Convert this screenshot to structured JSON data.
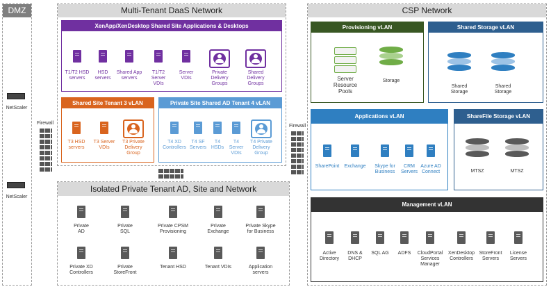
{
  "dmz": {
    "title": "DMZ",
    "netscaler_top": "NetScaler",
    "netscaler_bottom": "NetScaler",
    "firewall": "Firewall"
  },
  "daas": {
    "title": "Multi-Tenant DaaS Network",
    "shared_site": {
      "title": "XenApp/XenDesktop Shared Site Applications & Desktops",
      "items": [
        "T1/T2 HSD\nservers",
        "HSD\nservers",
        "Shared App\nservers",
        "T1/T2\nServer\nVDIs",
        "Server\nVDIs",
        "Private\nDelivery\nGroups",
        "Shared\nDelivery\nGroups"
      ]
    },
    "tenant3": {
      "title": "Shared Site Tenant 3 vLAN",
      "items": [
        "T3 HSD\nservers",
        "T3 Server\nVDIs",
        "T3 Private\nDelivery\nGroup"
      ]
    },
    "tenant4": {
      "title": "Private Site Shared AD Tenant 4 vLAN",
      "items": [
        "T4 XD\nControllers",
        "T4 SF\nServers",
        "T4\nHSDs",
        "T4\nServer\nVDIs",
        "T4 Private\nDelivery\nGroup"
      ]
    }
  },
  "isolated": {
    "title": "Isolated Private Tenant AD, Site and Network",
    "items": [
      "Private\nAD",
      "Private\nSQL",
      "Private CPSM\nProvisioning",
      "Private\nExchange",
      "Private Skype\nfor Business",
      "Private XD\nControllers",
      "Private\nStoreFront",
      "Tenant HSD",
      "Tenant VDIs",
      "Application\nservers"
    ]
  },
  "csp": {
    "title": "CSP Network",
    "firewall": "Firewall",
    "provisioning": {
      "title": "Provisioning vLAN",
      "server_pools": "Server\nResource\nPools",
      "storage": "Storage"
    },
    "shared_storage": {
      "title": "Shared Storage vLAN",
      "items": [
        "Shared\nStorage",
        "Shared\nStorage"
      ]
    },
    "applications": {
      "title": "Applications vLAN",
      "items": [
        "SharePoint",
        "Exchange",
        "Skype for\nBusiness",
        "CRM\nServers",
        "Azure AD\nConnect"
      ]
    },
    "sharefile": {
      "title": "ShareFile Storage vLAN",
      "items": [
        "MTSZ",
        "MTSZ"
      ]
    },
    "management": {
      "title": "Management vLAN",
      "items": [
        "Active\nDirectory",
        "DNS &\nDHCP",
        "SQL AG",
        "ADFS",
        "CloudPortal\nServices\nManager",
        "XenDesktop\nControllers",
        "StoreFront\nServers",
        "License\nServers"
      ]
    }
  },
  "colors": {
    "purple": "#7030a0",
    "orange": "#d9641e",
    "blue": "#5b9bd5",
    "green": "#385723",
    "navy": "#2e5f8f",
    "darkgray": "#333333",
    "server_gray": "#595959",
    "storage_green": "#70ad47",
    "storage_blue": "#2f7fc1"
  }
}
